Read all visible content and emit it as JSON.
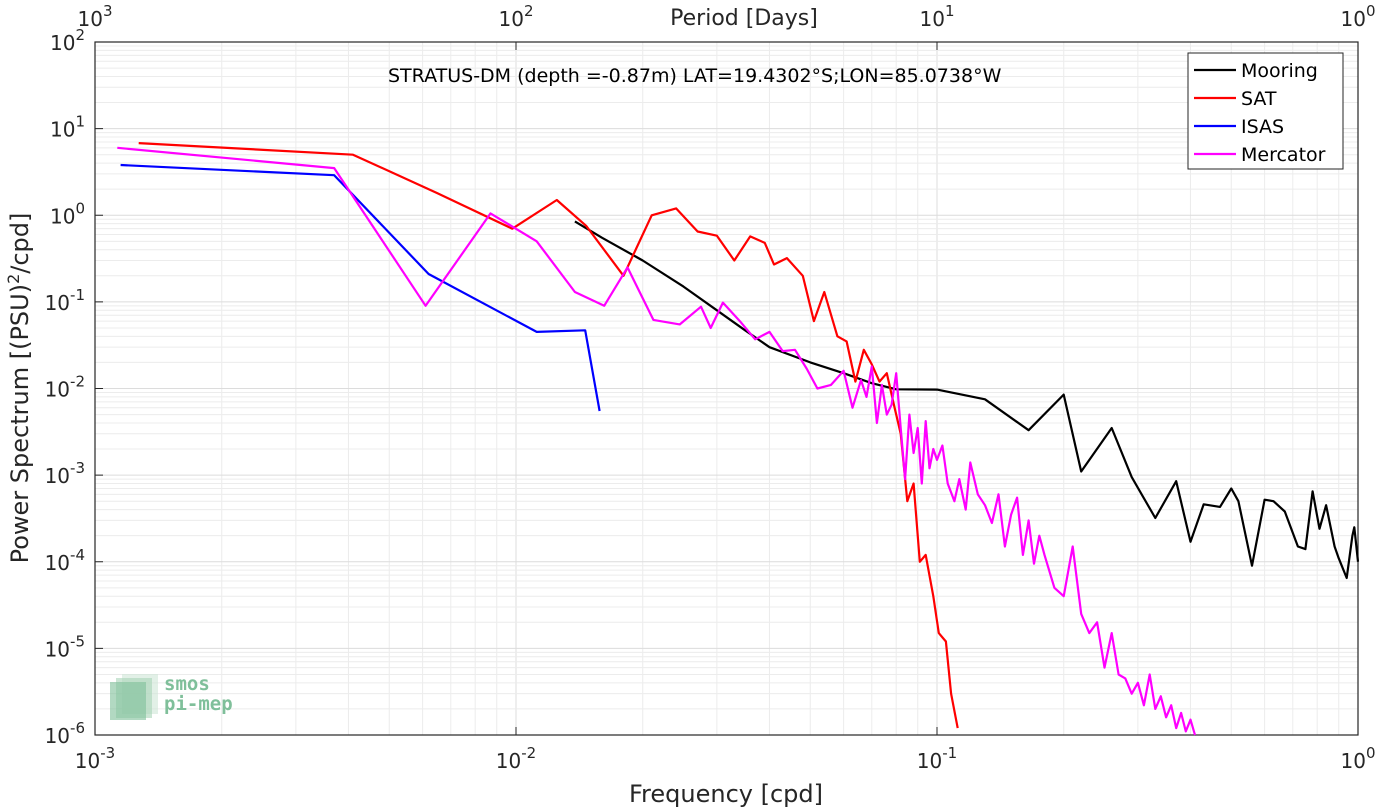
{
  "chart_data": {
    "type": "line",
    "title": "STRATUS-DM (depth =-0.87m) LAT=19.4302°S;LON=85.0738°W",
    "xlabel": "Frequency [cpd]",
    "ylabel": "Power Spectrum [(PSU)²/cpd]",
    "top_xlabel": "Period [Days]",
    "xscale": "log",
    "yscale": "log",
    "xlim": [
      0.001,
      1
    ],
    "ylim": [
      1e-06,
      100
    ],
    "grid": true,
    "legend_position": "top-right",
    "x_ticks": [
      {
        "value": 0.001,
        "base": "10",
        "exp": "-3"
      },
      {
        "value": 0.01,
        "base": "10",
        "exp": "-2"
      },
      {
        "value": 0.1,
        "base": "10",
        "exp": "-1"
      },
      {
        "value": 1,
        "base": "10",
        "exp": "0"
      }
    ],
    "top_ticks": [
      {
        "value": 0.001,
        "base": "10",
        "exp": "3"
      },
      {
        "value": 0.01,
        "base": "10",
        "exp": "2"
      },
      {
        "value": 0.1,
        "base": "10",
        "exp": "1"
      },
      {
        "value": 1,
        "base": "10",
        "exp": "0"
      }
    ],
    "y_ticks": [
      {
        "value": 1e-06,
        "base": "10",
        "exp": "-6"
      },
      {
        "value": 1e-05,
        "base": "10",
        "exp": "-5"
      },
      {
        "value": 0.0001,
        "base": "10",
        "exp": "-4"
      },
      {
        "value": 0.001,
        "base": "10",
        "exp": "-3"
      },
      {
        "value": 0.01,
        "base": "10",
        "exp": "-2"
      },
      {
        "value": 0.1,
        "base": "10",
        "exp": "-1"
      },
      {
        "value": 1,
        "base": "10",
        "exp": "0"
      },
      {
        "value": 10,
        "base": "10",
        "exp": "1"
      },
      {
        "value": 100,
        "base": "10",
        "exp": "2"
      }
    ],
    "series": [
      {
        "name": "Mooring",
        "color": "#000000",
        "x": [
          0.0138,
          0.016,
          0.02,
          0.025,
          0.03,
          0.035,
          0.04,
          0.05,
          0.06,
          0.07,
          0.08,
          0.1,
          0.13,
          0.165,
          0.2,
          0.22,
          0.26,
          0.29,
          0.33,
          0.37,
          0.4,
          0.43,
          0.47,
          0.5,
          0.52,
          0.56,
          0.6,
          0.63,
          0.67,
          0.72,
          0.75,
          0.78,
          0.81,
          0.84,
          0.88,
          0.9,
          0.94,
          0.97,
          0.98,
          1.0
        ],
        "y": [
          0.85,
          0.55,
          0.3,
          0.15,
          0.08,
          0.047,
          0.03,
          0.02,
          0.015,
          0.0115,
          0.0098,
          0.0097,
          0.0075,
          0.0033,
          0.0085,
          0.0011,
          0.0035,
          0.00095,
          0.00032,
          0.00085,
          0.00017,
          0.00046,
          0.00043,
          0.0007,
          0.0005,
          9e-05,
          0.00052,
          0.0005,
          0.00038,
          0.00015,
          0.00014,
          0.00065,
          0.00024,
          0.00045,
          0.00015,
          0.00011,
          6.5e-05,
          0.0002,
          0.00025,
          0.0001
        ]
      },
      {
        "name": "SAT",
        "color": "#ff0000",
        "x": [
          0.00127,
          0.0041,
          0.0065,
          0.0098,
          0.0125,
          0.0147,
          0.018,
          0.021,
          0.024,
          0.027,
          0.03,
          0.033,
          0.036,
          0.039,
          0.041,
          0.044,
          0.048,
          0.051,
          0.054,
          0.058,
          0.061,
          0.064,
          0.067,
          0.07,
          0.073,
          0.076,
          0.079,
          0.082,
          0.085,
          0.088,
          0.091,
          0.094,
          0.098,
          0.101,
          0.105,
          0.108,
          0.112
        ],
        "y": [
          6.8,
          5.0,
          1.8,
          0.7,
          1.5,
          0.75,
          0.2,
          1.0,
          1.2,
          0.65,
          0.58,
          0.3,
          0.57,
          0.48,
          0.27,
          0.32,
          0.2,
          0.06,
          0.13,
          0.04,
          0.035,
          0.012,
          0.028,
          0.019,
          0.012,
          0.015,
          0.0065,
          0.003,
          0.0005,
          0.0008,
          0.0001,
          0.00012,
          4e-05,
          1.5e-05,
          1.2e-05,
          3e-06,
          1.2e-06
        ]
      },
      {
        "name": "ISAS",
        "color": "#0000ff",
        "x": [
          0.00115,
          0.0037,
          0.0062,
          0.0112,
          0.0146,
          0.0158
        ],
        "y": [
          3.8,
          2.9,
          0.21,
          0.045,
          0.047,
          0.0055
        ]
      },
      {
        "name": "Mercator",
        "color": "#ff00ff",
        "x": [
          0.00113,
          0.0037,
          0.0061,
          0.0087,
          0.0112,
          0.0138,
          0.0162,
          0.0184,
          0.0212,
          0.0245,
          0.0275,
          0.029,
          0.031,
          0.034,
          0.037,
          0.04,
          0.043,
          0.046,
          0.049,
          0.052,
          0.056,
          0.06,
          0.063,
          0.066,
          0.068,
          0.07,
          0.072,
          0.074,
          0.076,
          0.078,
          0.08,
          0.082,
          0.084,
          0.086,
          0.088,
          0.09,
          0.092,
          0.094,
          0.096,
          0.098,
          0.1,
          0.103,
          0.106,
          0.11,
          0.113,
          0.117,
          0.12,
          0.125,
          0.13,
          0.135,
          0.14,
          0.145,
          0.15,
          0.155,
          0.16,
          0.165,
          0.17,
          0.175,
          0.18,
          0.19,
          0.2,
          0.21,
          0.22,
          0.23,
          0.24,
          0.25,
          0.26,
          0.27,
          0.28,
          0.29,
          0.3,
          0.31,
          0.32,
          0.33,
          0.34,
          0.35,
          0.36,
          0.37,
          0.38,
          0.39,
          0.4,
          0.41
        ],
        "y": [
          6.0,
          3.5,
          0.09,
          1.05,
          0.5,
          0.13,
          0.09,
          0.25,
          0.062,
          0.055,
          0.088,
          0.05,
          0.098,
          0.06,
          0.037,
          0.045,
          0.027,
          0.028,
          0.017,
          0.01,
          0.011,
          0.016,
          0.006,
          0.0125,
          0.008,
          0.018,
          0.004,
          0.011,
          0.005,
          0.0065,
          0.015,
          0.0035,
          0.0009,
          0.005,
          0.0018,
          0.0035,
          0.0008,
          0.0042,
          0.0012,
          0.002,
          0.0015,
          0.0022,
          0.0008,
          0.0005,
          0.0009,
          0.0004,
          0.0014,
          0.0006,
          0.00045,
          0.00028,
          0.0006,
          0.00015,
          0.00035,
          0.00055,
          0.00012,
          0.0003,
          9.5e-05,
          0.0002,
          0.00012,
          5e-05,
          4e-05,
          0.00015,
          2.5e-05,
          1.5e-05,
          2e-05,
          6e-06,
          1.5e-05,
          5e-06,
          4.5e-06,
          3e-06,
          4e-06,
          2.2e-06,
          5e-06,
          2e-06,
          2.8e-06,
          1.6e-06,
          2.2e-06,
          1.2e-06,
          1.8e-06,
          1.1e-06,
          1.5e-06,
          1e-06
        ]
      }
    ]
  },
  "logo": {
    "line1": "smos",
    "line2": "pi-mep"
  }
}
